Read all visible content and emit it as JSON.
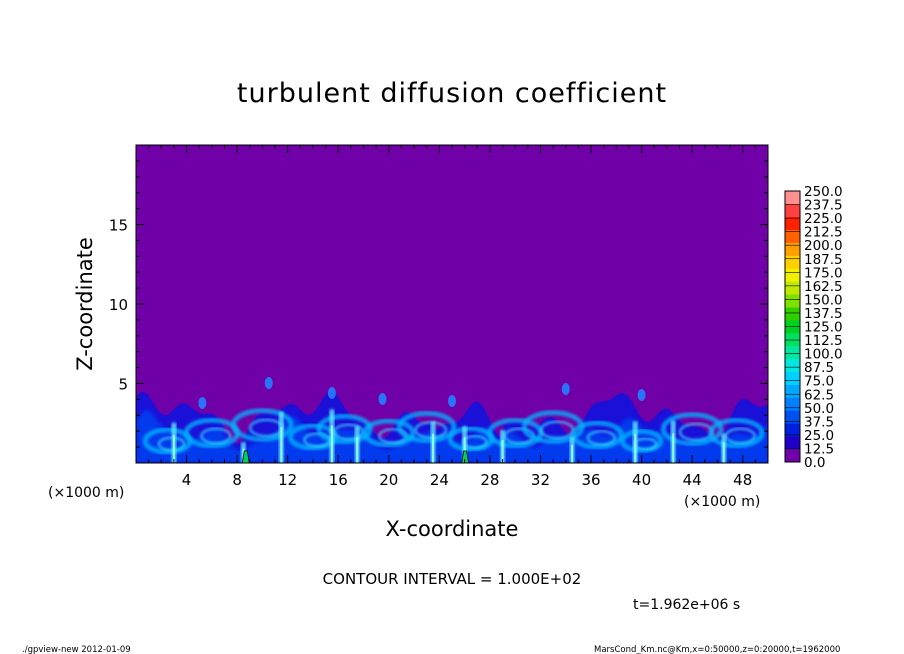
{
  "chart_data": {
    "type": "heatmap",
    "title": "turbulent diffusion coefficient",
    "xlabel": "X-coordinate",
    "ylabel": "Z-coordinate",
    "x_unit": "(×1000 m)",
    "y_unit": "(×1000 m)",
    "xlim": [
      0,
      50
    ],
    "ylim": [
      0,
      20
    ],
    "x_ticks": [
      4,
      8,
      12,
      16,
      20,
      24,
      28,
      32,
      36,
      40,
      44,
      48
    ],
    "y_ticks": [
      5,
      10,
      15
    ],
    "contour_interval": "CONTOUR INTERVAL = 1.000E+02",
    "time_label": "t=1.962e+06 s",
    "colorbar": {
      "levels": [
        "0.0",
        "12.5",
        "25.0",
        "37.5",
        "50.0",
        "62.5",
        "75.0",
        "87.5",
        "100.0",
        "112.5",
        "125.0",
        "137.5",
        "150.0",
        "162.5",
        "175.0",
        "187.5",
        "200.0",
        "212.5",
        "225.0",
        "237.5",
        "250.0"
      ],
      "colors": [
        "#7000a8",
        "#2000c8",
        "#0020e0",
        "#0050f0",
        "#0080ff",
        "#00a8ff",
        "#00d0ff",
        "#00e8e0",
        "#00e8a0",
        "#00e060",
        "#00d020",
        "#30d000",
        "#80e000",
        "#c0e800",
        "#f0f000",
        "#ffd000",
        "#ffa000",
        "#ff6000",
        "#ff2000",
        "#ff4040",
        "#ff9090"
      ]
    },
    "background_color": "#7000a8"
  },
  "footer": {
    "left": "./gpview-new 2012-01-09",
    "right": "MarsCond_Km.nc@Km,x=0:50000,z=0:20000,t=1962000"
  }
}
